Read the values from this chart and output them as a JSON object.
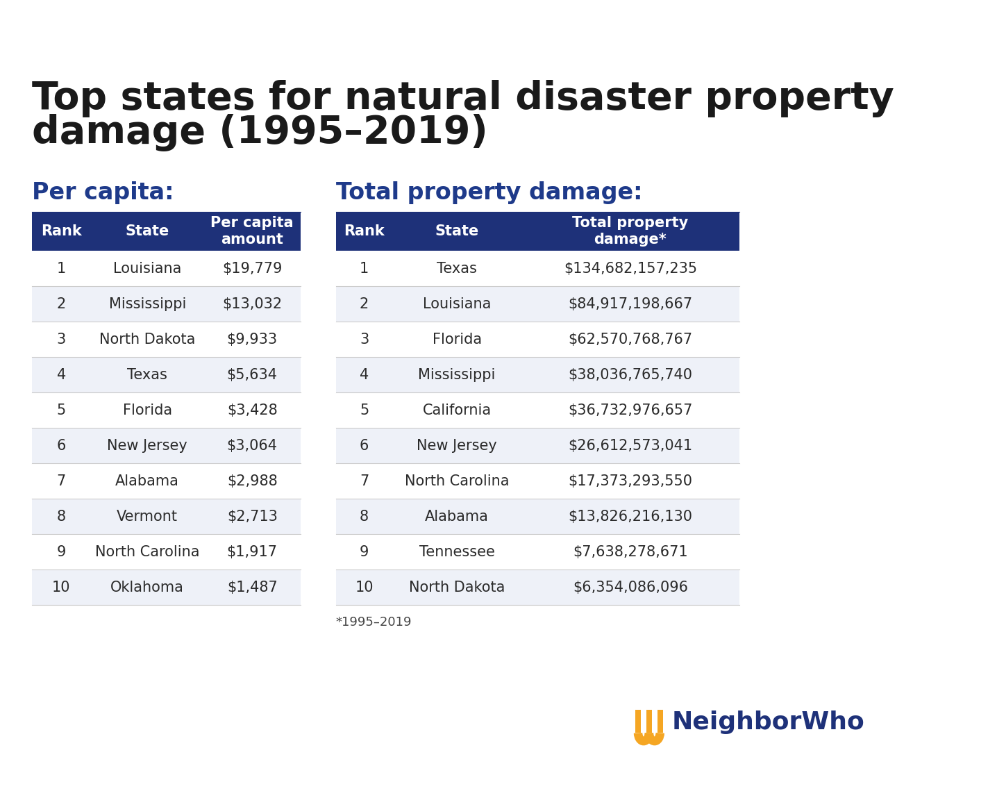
{
  "title_line1": "Top states for natural disaster property",
  "title_line2": "damage (1995–2019)",
  "title_color": "#1a1a1a",
  "title_fontsize": 40,
  "background_color": "#ffffff",
  "left_subtitle": "Per capita:",
  "right_subtitle": "Total property damage:",
  "subtitle_color": "#1e3a8a",
  "subtitle_fontsize": 24,
  "header_bg": "#1e3179",
  "header_text_color": "#ffffff",
  "header_fontsize": 15,
  "row_text_color": "#2a2a2a",
  "row_fontsize": 15,
  "row_divider_color": "#cccccc",
  "left_headers": [
    "Rank",
    "State",
    "Per capita\namount"
  ],
  "left_data": [
    [
      "1",
      "Louisiana",
      "$19,779"
    ],
    [
      "2",
      "Mississippi",
      "$13,032"
    ],
    [
      "3",
      "North Dakota",
      "$9,933"
    ],
    [
      "4",
      "Texas",
      "$5,634"
    ],
    [
      "5",
      "Florida",
      "$3,428"
    ],
    [
      "6",
      "New Jersey",
      "$3,064"
    ],
    [
      "7",
      "Alabama",
      "$2,988"
    ],
    [
      "8",
      "Vermont",
      "$2,713"
    ],
    [
      "9",
      "North Carolina",
      "$1,917"
    ],
    [
      "10",
      "Oklahoma",
      "$1,487"
    ]
  ],
  "right_headers": [
    "Rank",
    "State",
    "Total property\ndamage*"
  ],
  "right_data": [
    [
      "1",
      "Texas",
      "$134,682,157,235"
    ],
    [
      "2",
      "Louisiana",
      "$84,917,198,667"
    ],
    [
      "3",
      "Florida",
      "$62,570,768,767"
    ],
    [
      "4",
      "Mississippi",
      "$38,036,765,740"
    ],
    [
      "5",
      "California",
      "$36,732,976,657"
    ],
    [
      "6",
      "New Jersey",
      "$26,612,573,041"
    ],
    [
      "7",
      "North Carolina",
      "$17,373,293,550"
    ],
    [
      "8",
      "Alabama",
      "$13,826,216,130"
    ],
    [
      "9",
      "Tennessee",
      "$7,638,278,671"
    ],
    [
      "10",
      "North Dakota",
      "$6,354,086,096"
    ]
  ],
  "footnote": "*1995–2019",
  "footnote_color": "#444444",
  "footnote_fontsize": 13,
  "logo_text": "NeighborWho",
  "logo_color": "#1e3179",
  "logo_gold": "#f5a623"
}
